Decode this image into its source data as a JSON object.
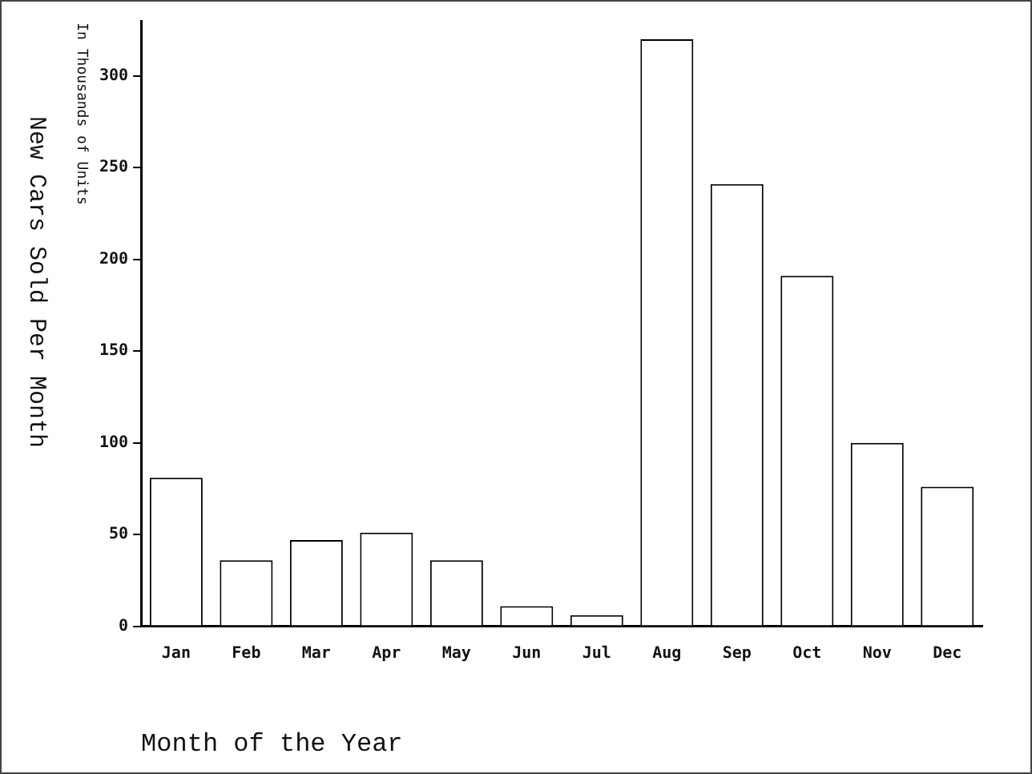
{
  "chart_data": {
    "type": "bar",
    "xlabel": "Month of the Year",
    "ylabel": "New Cars Sold Per Month",
    "annotations": [
      "In Thousands of Units"
    ],
    "categories": [
      "Jan",
      "Feb",
      "Mar",
      "Apr",
      "May",
      "Jun",
      "Jul",
      "Aug",
      "Sep",
      "Oct",
      "Nov",
      "Dec"
    ],
    "values": [
      81,
      36,
      47,
      51,
      36,
      11,
      6,
      320,
      241,
      191,
      100,
      76
    ],
    "color": "#ffffff",
    "ylim": [
      0,
      330
    ],
    "yticks": [
      0,
      50,
      100,
      150,
      200,
      250,
      300
    ],
    "grid": false,
    "legend": false
  }
}
